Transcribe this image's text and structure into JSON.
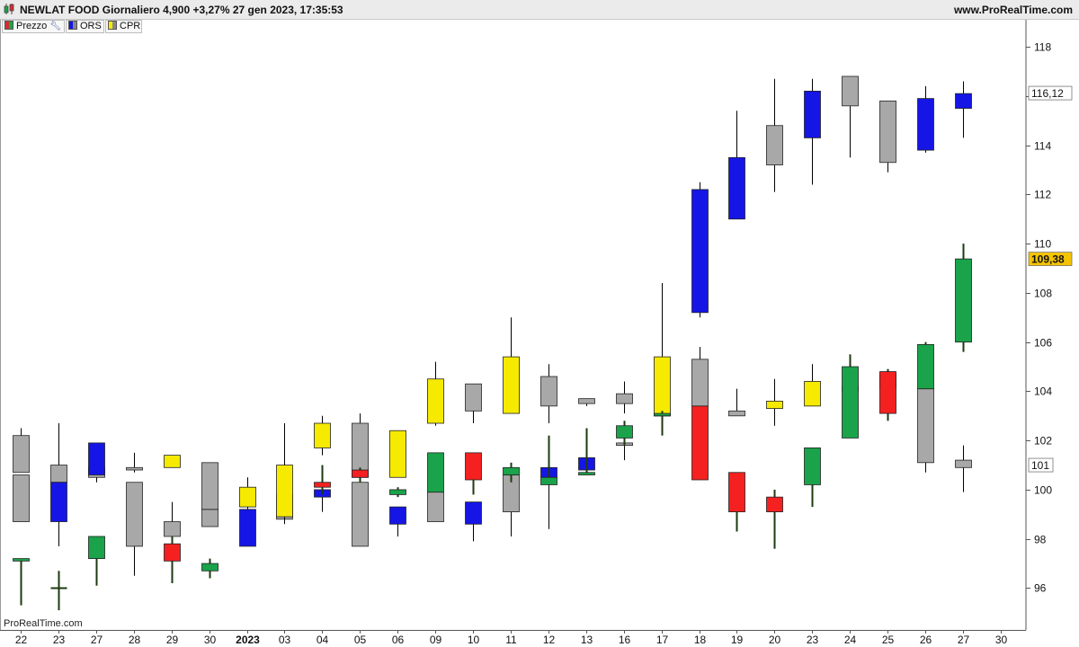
{
  "header": {
    "title": "NEWLAT FOOD Giornaliero 4,900 +3,27% 27 gen 2023, 17:35:53",
    "site": "www.ProRealTime.com"
  },
  "legend": [
    {
      "label": "Prezzo",
      "icon": "candlestick-swatch-icon",
      "colors": [
        "#d32f2f",
        "#1aa34a"
      ]
    },
    {
      "label": "ORS",
      "icon": "ors-swatch-icon",
      "colors": [
        "#1515e6",
        "#888888"
      ]
    },
    {
      "label": "CPR",
      "icon": "cpr-swatch-icon",
      "colors": [
        "#f6ea00",
        "#888888"
      ]
    }
  ],
  "watermark": "ProRealTime.com",
  "chart_data": {
    "type": "candlestick",
    "x_ticks": [
      "22",
      "23",
      "27",
      "28",
      "29",
      "30",
      "2023",
      "03",
      "04",
      "05",
      "06",
      "09",
      "10",
      "11",
      "12",
      "13",
      "16",
      "17",
      "18",
      "19",
      "20",
      "23",
      "24",
      "25",
      "26",
      "27",
      "30"
    ],
    "y_ticks": [
      96,
      98,
      100,
      102,
      104,
      106,
      108,
      110,
      112,
      114,
      116,
      118
    ],
    "ylim": [
      94.3,
      119.1
    ],
    "price_labels": [
      {
        "text": "116,12",
        "value": 116.12,
        "style": "outline"
      },
      {
        "text": "101",
        "value": 101,
        "style": "outline"
      },
      {
        "text": "109,38",
        "value": 109.38,
        "style": "highlight",
        "color": "#f5c400"
      }
    ],
    "colors": {
      "up": "#1aa34a",
      "down": "#f52020",
      "ors": "#1515e6",
      "cpr": "#f6ea00",
      "neutral": "#a8a8a8",
      "wick": "#1c3a10",
      "wick_upper": "#000000"
    },
    "series": [
      {
        "name": "Prezzo",
        "candles": [
          {
            "o": 97.1,
            "c": 97.2,
            "h": 97.2,
            "l": 95.3,
            "color": "up"
          },
          {
            "o": 96.0,
            "c": 96.0,
            "h": 96.7,
            "l": 95.1,
            "color": "up"
          },
          {
            "o": 97.2,
            "c": 98.1,
            "h": 98.1,
            "l": 96.1,
            "color": "up"
          },
          null,
          {
            "o": 97.8,
            "c": 97.1,
            "h": 98.1,
            "l": 96.2,
            "color": "down"
          },
          {
            "o": 96.7,
            "c": 97.0,
            "h": 97.2,
            "l": 96.4,
            "color": "up"
          },
          null,
          null,
          {
            "o": 100.3,
            "c": 100.1,
            "h": 101.0,
            "l": 99.8,
            "color": "down"
          },
          {
            "o": 100.8,
            "c": 100.5,
            "h": 100.9,
            "l": 100.3,
            "color": "down"
          },
          {
            "o": 99.8,
            "c": 100.0,
            "h": 100.1,
            "l": 99.7,
            "color": "up"
          },
          {
            "o": 99.9,
            "c": 101.5,
            "h": 101.5,
            "l": 99.9,
            "color": "up"
          },
          {
            "o": 100.4,
            "c": 101.5,
            "h": 101.5,
            "l": 99.8,
            "color": "down"
          },
          {
            "o": 100.6,
            "c": 100.9,
            "h": 101.1,
            "l": 100.3,
            "color": "up"
          },
          {
            "o": 100.2,
            "c": 100.5,
            "h": 102.2,
            "l": 100.2,
            "color": "up"
          },
          {
            "o": 100.6,
            "c": 100.7,
            "h": 102.5,
            "l": 100.6,
            "color": "up"
          },
          {
            "o": 102.1,
            "c": 102.6,
            "h": 102.8,
            "l": 101.8,
            "color": "up"
          },
          {
            "o": 103.0,
            "c": 103.1,
            "h": 103.2,
            "l": 102.2,
            "color": "up"
          },
          {
            "o": 103.4,
            "c": 100.4,
            "h": 103.4,
            "l": 100.4,
            "color": "down"
          },
          {
            "o": 100.7,
            "c": 99.1,
            "h": 100.7,
            "l": 98.3,
            "color": "down"
          },
          {
            "o": 99.7,
            "c": 99.1,
            "h": 100.0,
            "l": 97.6,
            "color": "down"
          },
          {
            "o": 100.2,
            "c": 101.7,
            "h": 101.7,
            "l": 99.3,
            "color": "up"
          },
          {
            "o": 102.1,
            "c": 105.0,
            "h": 105.5,
            "l": 102.1,
            "color": "up"
          },
          {
            "o": 104.8,
            "c": 103.1,
            "h": 104.9,
            "l": 102.8,
            "color": "down"
          },
          {
            "o": 104.1,
            "c": 105.9,
            "h": 106.0,
            "l": 104.1,
            "color": "up"
          },
          {
            "o": 106.0,
            "c": 109.38,
            "h": 110.0,
            "l": 105.6,
            "color": "up"
          }
        ]
      },
      {
        "name": "ORS",
        "candles": [
          {
            "o": 100.7,
            "c": 102.2,
            "h": 102.5,
            "l": 100.7,
            "color": "neutral"
          },
          {
            "o": 98.7,
            "c": 100.3,
            "h": 100.3,
            "l": 98.7,
            "color": "ors"
          },
          {
            "o": 100.6,
            "c": 101.9,
            "h": 101.9,
            "l": 100.6,
            "color": "ors"
          },
          {
            "o": 100.8,
            "c": 100.9,
            "h": 101.5,
            "l": 100.7,
            "color": "neutral"
          },
          {
            "o": 101.4,
            "c": 100.9,
            "h": 101.4,
            "l": 100.9,
            "color": "cpr"
          },
          {
            "o": 99.2,
            "c": 101.1,
            "h": 101.1,
            "l": 99.2,
            "color": "neutral"
          },
          {
            "o": 97.7,
            "c": 99.2,
            "h": 99.2,
            "l": 97.7,
            "color": "ors"
          },
          {
            "o": 98.9,
            "c": 101.0,
            "h": 102.7,
            "l": 98.7,
            "color": "cpr"
          },
          {
            "o": 99.7,
            "c": 100.0,
            "h": 100.0,
            "l": 99.1,
            "color": "ors"
          },
          {
            "o": 100.5,
            "c": 102.7,
            "h": 103.1,
            "l": 100.5,
            "color": "neutral"
          },
          {
            "o": 98.6,
            "c": 99.3,
            "h": 99.3,
            "l": 98.1,
            "color": "ors"
          },
          {
            "o": 102.7,
            "c": 104.5,
            "h": 105.2,
            "l": 102.6,
            "color": "cpr"
          },
          {
            "o": 98.6,
            "c": 99.5,
            "h": 99.5,
            "l": 97.9,
            "color": "ors"
          },
          {
            "o": 103.1,
            "c": 105.4,
            "h": 107.0,
            "l": 103.1,
            "color": "cpr"
          },
          {
            "o": 103.4,
            "c": 104.6,
            "h": 105.1,
            "l": 102.7,
            "color": "neutral"
          },
          {
            "o": 100.8,
            "c": 101.3,
            "h": 101.4,
            "l": 100.7,
            "color": "ors"
          },
          {
            "o": 103.5,
            "c": 103.9,
            "h": 104.4,
            "l": 103.1,
            "color": "neutral"
          },
          {
            "o": 103.0,
            "c": 105.4,
            "h": 108.4,
            "l": 103.0,
            "color": "cpr"
          },
          {
            "o": 107.2,
            "c": 112.2,
            "h": 112.5,
            "l": 107.0,
            "color": "ors"
          },
          {
            "o": 111.0,
            "c": 113.5,
            "h": 115.4,
            "l": 111.0,
            "color": "ors"
          },
          {
            "o": 113.2,
            "c": 114.8,
            "h": 116.7,
            "l": 112.1,
            "color": "neutral"
          },
          {
            "o": 114.3,
            "c": 116.2,
            "h": 116.7,
            "l": 112.4,
            "color": "ors"
          },
          {
            "o": 115.6,
            "c": 116.8,
            "h": 116.8,
            "l": 113.5,
            "color": "neutral"
          },
          {
            "o": 113.3,
            "c": 115.8,
            "h": 115.8,
            "l": 112.9,
            "color": "neutral"
          },
          {
            "o": 113.8,
            "c": 115.9,
            "h": 116.4,
            "l": 113.7,
            "color": "ors"
          },
          {
            "o": 115.5,
            "c": 116.1,
            "h": 116.6,
            "l": 114.3,
            "color": "ors"
          }
        ]
      },
      {
        "name": "CPR",
        "candles": [
          {
            "o": 98.7,
            "c": 100.6,
            "h": 100.6,
            "l": 98.7,
            "color": "neutral"
          },
          {
            "o": 100.3,
            "c": 101.0,
            "h": 102.7,
            "l": 97.7,
            "color": "neutral"
          },
          {
            "o": 100.5,
            "c": 100.9,
            "h": 101.3,
            "l": 100.3,
            "color": "neutral"
          },
          {
            "o": 97.7,
            "c": 100.3,
            "h": 100.3,
            "l": 96.5,
            "color": "neutral"
          },
          {
            "o": 98.1,
            "c": 98.7,
            "h": 99.5,
            "l": 97.9,
            "color": "neutral"
          },
          {
            "o": 98.5,
            "c": 99.2,
            "h": 99.5,
            "l": 98.5,
            "color": "neutral"
          },
          {
            "o": 99.3,
            "c": 100.1,
            "h": 100.5,
            "l": 98.9,
            "color": "cpr"
          },
          {
            "o": 98.8,
            "c": 99.8,
            "h": 99.9,
            "l": 98.6,
            "color": "neutral"
          },
          {
            "o": 101.7,
            "c": 102.7,
            "h": 103.0,
            "l": 101.4,
            "color": "cpr"
          },
          {
            "o": 97.7,
            "c": 100.3,
            "h": 100.3,
            "l": 97.7,
            "color": "neutral"
          },
          {
            "o": 100.5,
            "c": 102.4,
            "h": 102.4,
            "l": 100.5,
            "color": "cpr"
          },
          {
            "o": 98.7,
            "c": 99.9,
            "h": 101.0,
            "l": 98.7,
            "color": "neutral"
          },
          {
            "o": 103.2,
            "c": 104.3,
            "h": 104.3,
            "l": 102.7,
            "color": "neutral"
          },
          {
            "o": 99.1,
            "c": 100.6,
            "h": 100.6,
            "l": 98.1,
            "color": "neutral"
          },
          {
            "o": 100.5,
            "c": 100.9,
            "h": 101.0,
            "l": 98.4,
            "color": "ors"
          },
          {
            "o": 103.5,
            "c": 103.7,
            "h": 103.7,
            "l": 103.4,
            "color": "neutral"
          },
          {
            "o": 101.8,
            "c": 101.9,
            "h": 102.0,
            "l": 101.2,
            "color": "neutral"
          },
          {
            "o": 103.0,
            "c": 103.1,
            "h": 103.1,
            "l": 103.0,
            "color": "neutral"
          },
          {
            "o": 103.4,
            "c": 105.3,
            "h": 105.8,
            "l": 103.4,
            "color": "neutral"
          },
          {
            "o": 103.0,
            "c": 103.2,
            "h": 104.1,
            "l": 103.0,
            "color": "neutral"
          },
          {
            "o": 103.3,
            "c": 103.6,
            "h": 104.5,
            "l": 102.6,
            "color": "cpr"
          },
          {
            "o": 103.4,
            "c": 104.4,
            "h": 105.1,
            "l": 103.4,
            "color": "cpr"
          },
          {
            "o": 104.0,
            "c": 104.2,
            "h": 104.5,
            "l": 103.5,
            "color": "neutral"
          },
          {
            "o": 104.1,
            "c": 104.7,
            "h": 104.9,
            "l": 103.7,
            "color": "neutral"
          },
          {
            "o": 101.1,
            "c": 104.1,
            "h": 104.1,
            "l": 100.7,
            "color": "neutral"
          },
          {
            "o": 100.9,
            "c": 101.2,
            "h": 101.8,
            "l": 99.9,
            "color": "neutral"
          }
        ]
      }
    ]
  }
}
